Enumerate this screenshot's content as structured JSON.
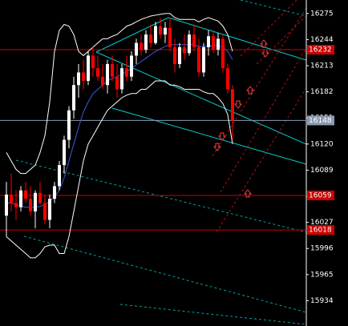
{
  "chart_data": {
    "type": "candlestick",
    "ylim": [
      15904,
      16291
    ],
    "yticks": [
      16275,
      16244,
      16213,
      16182,
      16151,
      16120,
      16089,
      16058,
      16027,
      15996,
      15965,
      15934
    ],
    "bull_color": "#ffffff",
    "bear_color": "#ff0000",
    "open": [
      16035,
      16060,
      16050,
      16045,
      16065,
      16055,
      16040,
      16062,
      16050,
      16030,
      16055,
      16070,
      16095,
      16125,
      16160,
      16190,
      16205,
      16195,
      16225,
      16210,
      16200,
      16190,
      16215,
      16200,
      16185,
      16210,
      16200,
      16225,
      16240,
      16232,
      16250,
      16240,
      16260,
      16250,
      16258,
      16235,
      16215,
      16235,
      16228,
      16250,
      16235,
      16205,
      16235,
      16248,
      16232,
      16245,
      16210,
      16185
    ],
    "high": [
      16075,
      16085,
      16065,
      16070,
      16075,
      16070,
      16065,
      16075,
      16060,
      16060,
      16075,
      16100,
      16130,
      16165,
      16200,
      16215,
      16220,
      16230,
      16235,
      16225,
      16215,
      16220,
      16225,
      16215,
      16215,
      16225,
      16230,
      16245,
      16250,
      16255,
      16262,
      16265,
      16270,
      16265,
      16270,
      16245,
      16240,
      16250,
      16255,
      16262,
      16245,
      16240,
      16255,
      16255,
      16252,
      16250,
      16215,
      16190
    ],
    "low": [
      16010,
      16040,
      16030,
      16040,
      16050,
      16035,
      16020,
      16048,
      16025,
      16020,
      16050,
      16065,
      16085,
      16115,
      16150,
      16175,
      16185,
      16190,
      16200,
      16195,
      16185,
      16180,
      16195,
      16175,
      16180,
      16195,
      16195,
      16215,
      16225,
      16228,
      16235,
      16238,
      16245,
      16240,
      16230,
      16205,
      16210,
      16220,
      16225,
      16230,
      16200,
      16200,
      16225,
      16228,
      16225,
      16205,
      16180,
      16125
    ],
    "close": [
      16060,
      16050,
      16045,
      16065,
      16055,
      16040,
      16062,
      16050,
      16030,
      16055,
      16070,
      16095,
      16125,
      16160,
      16190,
      16205,
      16195,
      16225,
      16210,
      16200,
      16190,
      16215,
      16200,
      16185,
      16210,
      16200,
      16225,
      16240,
      16232,
      16250,
      16240,
      16260,
      16250,
      16258,
      16235,
      16215,
      16235,
      16228,
      16250,
      16235,
      16205,
      16235,
      16248,
      16232,
      16245,
      16210,
      16185,
      16148
    ],
    "lines": [
      {
        "color": "#ffffff",
        "values": [
          16110,
          16100,
          16090,
          16085,
          16085,
          16090,
          16095,
          16110,
          16130,
          16170,
          16230,
          16255,
          16262,
          16260,
          16250,
          16230,
          16225,
          16230,
          16235,
          16240,
          16245,
          16245,
          16248,
          16250,
          16255,
          16260,
          16262,
          16265,
          16268,
          16270,
          16272,
          16273,
          16274,
          16275,
          16275,
          16270,
          16268,
          16268,
          16268,
          16268,
          16265,
          16268,
          16270,
          16268,
          16266,
          16260,
          16250,
          16230
        ]
      },
      {
        "color": "#ffffff",
        "values": [
          16010,
          16005,
          16000,
          15995,
          15990,
          15985,
          15985,
          15990,
          15998,
          16000,
          16000,
          15990,
          15990,
          16010,
          16040,
          16070,
          16100,
          16120,
          16130,
          16140,
          16150,
          16160,
          16165,
          16170,
          16175,
          16178,
          16180,
          16180,
          16185,
          16185,
          16190,
          16195,
          16195,
          16195,
          16190,
          16190,
          16188,
          16185,
          16185,
          16185,
          16185,
          16182,
          16180,
          16180,
          16175,
          16168,
          16155,
          16120
        ]
      },
      {
        "color": "#3b5bd6",
        "values": [
          16050,
          16050,
          16048,
          16046,
          16045,
          16045,
          16045,
          16046,
          16048,
          16052,
          16058,
          16065,
          16080,
          16100,
          16120,
          16140,
          16158,
          16170,
          16180,
          16185,
          16190,
          16195,
          16198,
          16200,
          16203,
          16206,
          16210,
          16214,
          16218,
          16222,
          16226,
          16230,
          16233,
          16236,
          16238,
          16238,
          16238,
          16238,
          16238,
          16238,
          16236,
          16236,
          16236,
          16237,
          16237,
          16235,
          16230,
          16220
        ]
      }
    ],
    "levels": [
      {
        "price": 16232,
        "color": "#cc0000"
      },
      {
        "price": 16148,
        "color": "#8a9bb0"
      },
      {
        "price": 16059,
        "color": "#cc0000"
      },
      {
        "price": 16018,
        "color": "#cc0000"
      }
    ]
  }
}
